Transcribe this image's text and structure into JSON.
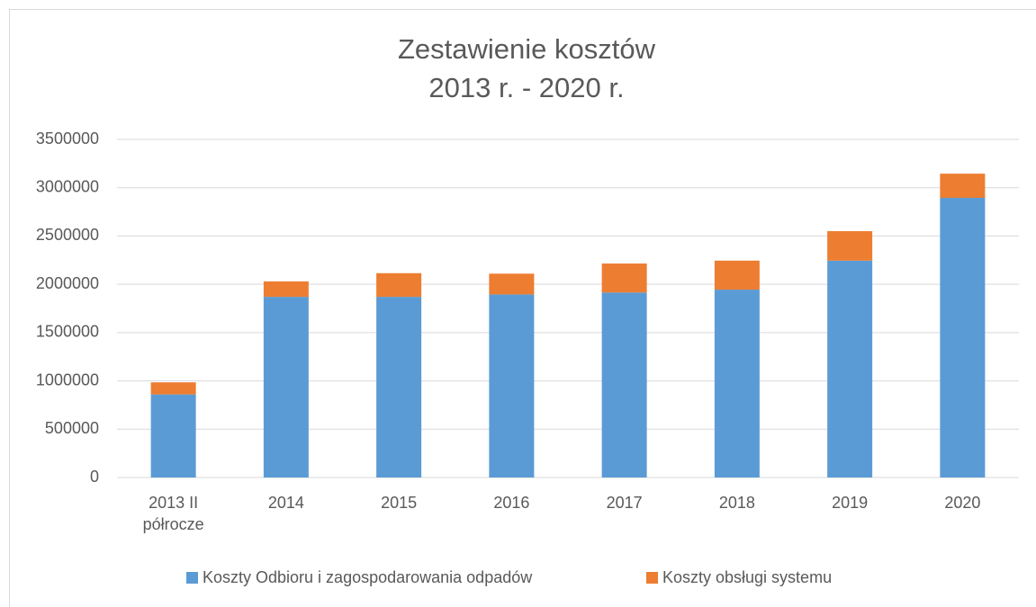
{
  "chart_data": {
    "type": "stacked_bar",
    "title": [
      "Zestawienie kosztów",
      "2013 r. - 2020 r."
    ],
    "categories": [
      "2013 II półrocze",
      "2014",
      "2015",
      "2016",
      "2017",
      "2018",
      "2019",
      "2020"
    ],
    "series": [
      {
        "name": "Koszty Odbioru i zagospodarowania odpadów",
        "color": "#5b9bd5",
        "values": [
          860000,
          1870000,
          1870000,
          1895000,
          1915000,
          1945000,
          2245000,
          2895000
        ]
      },
      {
        "name": "Koszty obsługi systemu",
        "color": "#ed7d31",
        "values": [
          125000,
          160000,
          245000,
          215000,
          300000,
          300000,
          305000,
          250000
        ]
      }
    ],
    "ylim": [
      0,
      3500000
    ],
    "yticks": [
      0,
      500000,
      1000000,
      1500000,
      2000000,
      2500000,
      3000000,
      3500000
    ],
    "grid": true,
    "legend": "bottom"
  }
}
